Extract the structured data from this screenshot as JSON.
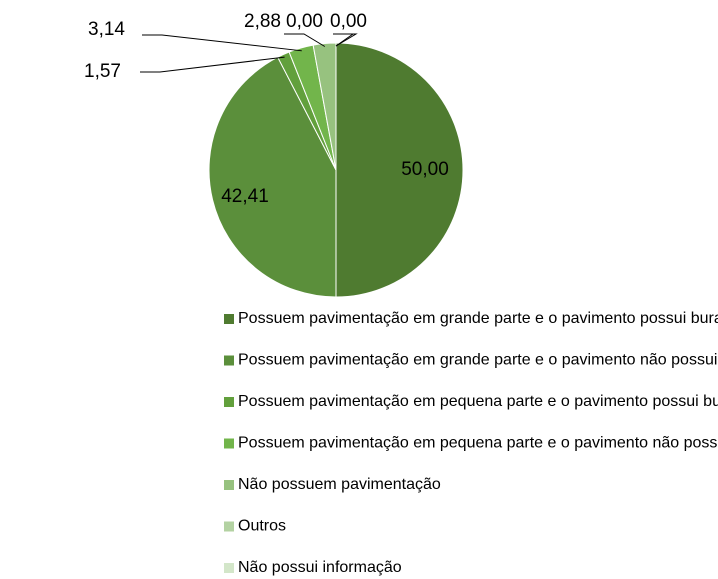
{
  "chart_data": {
    "type": "pie",
    "categories": [
      "Possuem pavimentação em grande parte e o pavimento possui buracos",
      "Possuem pavimentação em grande parte e o pavimento não possui buracos",
      "Possuem pavimentação em pequena parte e o pavimento possui buracos",
      "Possuem pavimentação em pequena parte e o pavimento não possui buracos",
      "Não possuem pavimentação",
      "Outros",
      "Não possui informação"
    ],
    "values": [
      50.0,
      42.41,
      1.57,
      3.14,
      2.88,
      0.0,
      0.0
    ],
    "value_labels": [
      "50,00",
      "42,41",
      "1,57",
      "3,14",
      "2,88",
      "0,00",
      "0,00"
    ],
    "colors": [
      "#4f7b30",
      "#5b8f3b",
      "#62a03c",
      "#72b54b",
      "#97c27f",
      "#b3d2a2",
      "#d3e6c9"
    ],
    "legend": "bottom"
  }
}
